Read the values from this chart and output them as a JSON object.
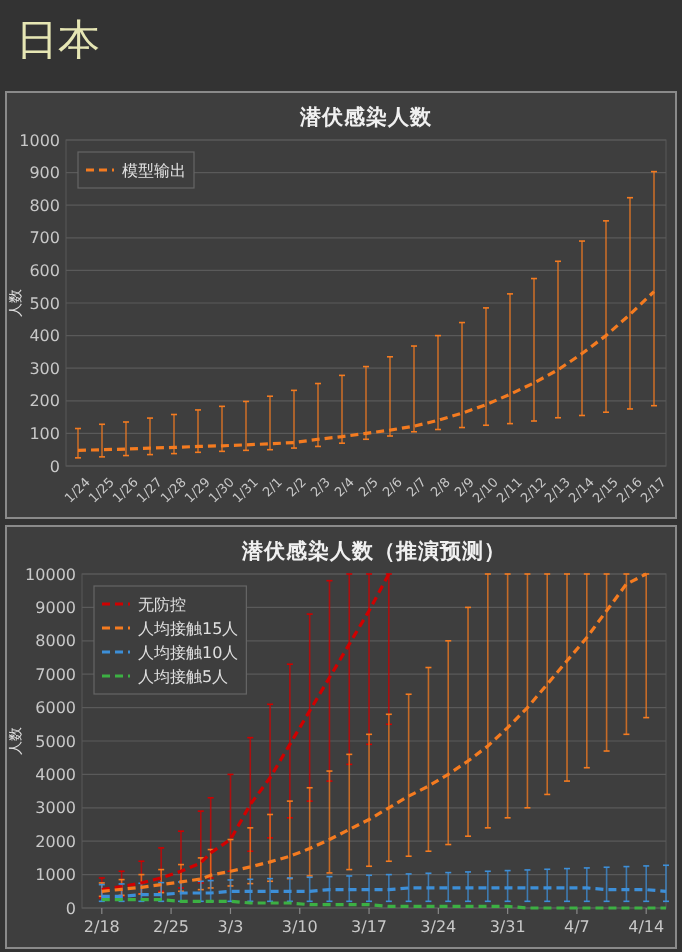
{
  "chart_data": [
    {
      "type": "line",
      "title": "潜伏感染人数",
      "ylabel": "人数",
      "annotations": [
        "日本"
      ],
      "categories": [
        "1/24",
        "1/25",
        "1/26",
        "1/27",
        "1/28",
        "1/29",
        "1/30",
        "1/31",
        "2/1",
        "2/2",
        "2/3",
        "2/4",
        "2/5",
        "2/6",
        "2/7",
        "2/8",
        "2/9",
        "2/10",
        "2/11",
        "2/12",
        "2/13",
        "2/14",
        "2/15",
        "2/16",
        "2/17"
      ],
      "series": [
        {
          "name": "模型输出",
          "color": "#f47b20",
          "values": [
            48,
            50,
            52,
            55,
            57,
            60,
            62,
            65,
            68,
            72,
            82,
            90,
            100,
            110,
            122,
            140,
            162,
            188,
            220,
            255,
            295,
            345,
            400,
            465,
            535
          ],
          "errors": [
            [
              25,
              115
            ],
            [
              28,
              128
            ],
            [
              32,
              135
            ],
            [
              35,
              147
            ],
            [
              38,
              158
            ],
            [
              42,
              172
            ],
            [
              45,
              183
            ],
            [
              48,
              198
            ],
            [
              50,
              214
            ],
            [
              55,
              232
            ],
            [
              60,
              253
            ],
            [
              70,
              278
            ],
            [
              82,
              305
            ],
            [
              92,
              335
            ],
            [
              105,
              368
            ],
            [
              112,
              400
            ],
            [
              118,
              440
            ],
            [
              125,
              485
            ],
            [
              130,
              528
            ],
            [
              138,
              575
            ],
            [
              148,
              628
            ],
            [
              155,
              690
            ],
            [
              165,
              752
            ],
            [
              175,
              823
            ],
            [
              185,
              903
            ]
          ]
        }
      ],
      "ylim": [
        0,
        1000
      ],
      "yticks": [
        0,
        100,
        200,
        300,
        400,
        500,
        600,
        700,
        800,
        900,
        1000
      ],
      "grid": "y",
      "legend": "top left",
      "line_style": "dashed",
      "marker": "none"
    },
    {
      "type": "line",
      "title": "潜伏感染人数（推演预测）",
      "ylabel": "人数",
      "xlim": [
        "--02-16",
        "--04-16"
      ],
      "xticks": [
        {
          "value": "--02-18",
          "label": "2/18"
        },
        {
          "value": "--02-25",
          "label": "2/25"
        },
        {
          "value": "--03-03",
          "label": "3/3"
        },
        {
          "value": "--03-10",
          "label": "3/10"
        },
        {
          "value": "--03-17",
          "label": "3/17"
        },
        {
          "value": "--03-24",
          "label": "3/24"
        },
        {
          "value": "--03-31",
          "label": "3/31"
        },
        {
          "value": "--04-07",
          "label": "4/7"
        },
        {
          "value": "--04-14",
          "label": "4/14"
        }
      ],
      "series": [
        {
          "name": "无防控",
          "color": "#d00000",
          "x": [
            "--02-18",
            "--02-20",
            "--02-22",
            "--02-24",
            "--02-26",
            "--02-28",
            "--03-01",
            "--03-03",
            "--03-05",
            "--03-07",
            "--03-09",
            "--03-11",
            "--03-13",
            "--03-15",
            "--03-17",
            "--03-19"
          ],
          "values": [
            550,
            640,
            750,
            900,
            1100,
            1350,
            1650,
            2050,
            3100,
            3900,
            4900,
            5900,
            6900,
            7900,
            8900,
            10000
          ],
          "errors": [
            [
              300,
              900
            ],
            [
              350,
              1100
            ],
            [
              420,
              1400
            ],
            [
              500,
              1800
            ],
            [
              600,
              2300
            ],
            [
              750,
              2900
            ],
            [
              900,
              3300
            ],
            [
              1100,
              4000
            ],
            [
              1700,
              5100
            ],
            [
              2100,
              6100
            ],
            [
              2700,
              7300
            ],
            [
              3200,
              8800
            ],
            [
              3800,
              9800
            ],
            [
              4300,
              10000
            ],
            [
              4900,
              10000
            ],
            [
              5500,
              10000
            ]
          ]
        },
        {
          "name": "人均接触15人",
          "color": "#f47b20",
          "x": [
            "--02-18",
            "--02-20",
            "--02-22",
            "--02-24",
            "--02-26",
            "--02-28",
            "--03-01",
            "--03-03",
            "--03-05",
            "--03-07",
            "--03-09",
            "--03-11",
            "--03-13",
            "--03-15",
            "--03-17",
            "--03-19",
            "--03-21",
            "--03-23",
            "--03-25",
            "--03-27",
            "--03-29",
            "--03-31",
            "--04-02",
            "--04-04",
            "--04-06",
            "--04-08",
            "--04-10",
            "--04-12",
            "--04-14"
          ],
          "values": [
            500,
            560,
            620,
            700,
            780,
            870,
            980,
            1100,
            1230,
            1380,
            1550,
            1780,
            2050,
            2350,
            2650,
            3000,
            3350,
            3650,
            4000,
            4400,
            4850,
            5400,
            6000,
            6700,
            7400,
            8100,
            8900,
            9700,
            10000
          ],
          "errors": [
            [
              350,
              750
            ],
            [
              380,
              850
            ],
            [
              420,
              1000
            ],
            [
              460,
              1150
            ],
            [
              500,
              1300
            ],
            [
              550,
              1500
            ],
            [
              600,
              1750
            ],
            [
              660,
              2050
            ],
            [
              730,
              2400
            ],
            [
              800,
              2800
            ],
            [
              880,
              3200
            ],
            [
              960,
              3600
            ],
            [
              1050,
              4100
            ],
            [
              1150,
              4600
            ],
            [
              1250,
              5200
            ],
            [
              1400,
              5800
            ],
            [
              1550,
              6400
            ],
            [
              1700,
              7200
            ],
            [
              1900,
              8000
            ],
            [
              2150,
              9000
            ],
            [
              2400,
              10000
            ],
            [
              2700,
              10000
            ],
            [
              3000,
              10000
            ],
            [
              3400,
              10000
            ],
            [
              3800,
              10000
            ],
            [
              4200,
              10000
            ],
            [
              4700,
              10000
            ],
            [
              5200,
              10000
            ],
            [
              5700,
              10000
            ]
          ]
        },
        {
          "name": "人均接触10人",
          "color": "#3d8fd8",
          "x": [
            "--02-18",
            "--02-20",
            "--02-22",
            "--02-24",
            "--02-26",
            "--02-28",
            "--03-01",
            "--03-03",
            "--03-05",
            "--03-07",
            "--03-09",
            "--03-11",
            "--03-13",
            "--03-15",
            "--03-17",
            "--03-19",
            "--03-21",
            "--03-23",
            "--03-25",
            "--03-27",
            "--03-29",
            "--03-31",
            "--04-02",
            "--04-04",
            "--04-06",
            "--04-08",
            "--04-10",
            "--04-12",
            "--04-14",
            "--04-16"
          ],
          "values": [
            350,
            350,
            400,
            400,
            450,
            450,
            450,
            500,
            500,
            500,
            500,
            500,
            550,
            550,
            550,
            550,
            600,
            600,
            600,
            600,
            600,
            600,
            600,
            600,
            600,
            600,
            550,
            550,
            550,
            500
          ],
          "errors": [
            [
              200,
              700
            ],
            [
              200,
              720
            ],
            [
              200,
              740
            ],
            [
              200,
              760
            ],
            [
              200,
              780
            ],
            [
              200,
              800
            ],
            [
              200,
              820
            ],
            [
              200,
              840
            ],
            [
              200,
              860
            ],
            [
              200,
              880
            ],
            [
              200,
              900
            ],
            [
              200,
              920
            ],
            [
              200,
              940
            ],
            [
              200,
              960
            ],
            [
              200,
              980
            ],
            [
              200,
              1000
            ],
            [
              200,
              1020
            ],
            [
              200,
              1040
            ],
            [
              200,
              1060
            ],
            [
              200,
              1080
            ],
            [
              200,
              1100
            ],
            [
              200,
              1120
            ],
            [
              200,
              1140
            ],
            [
              200,
              1160
            ],
            [
              200,
              1180
            ],
            [
              200,
              1200
            ],
            [
              200,
              1220
            ],
            [
              200,
              1240
            ],
            [
              200,
              1260
            ],
            [
              200,
              1280
            ]
          ]
        },
        {
          "name": "人均接触5人",
          "color": "#3cb043",
          "x": [
            "--02-18",
            "--02-20",
            "--02-22",
            "--02-24",
            "--02-26",
            "--02-28",
            "--03-01",
            "--03-03",
            "--03-05",
            "--03-07",
            "--03-09",
            "--03-11",
            "--03-13",
            "--03-15",
            "--03-17",
            "--03-19",
            "--03-21",
            "--03-23",
            "--03-25",
            "--03-27",
            "--03-29",
            "--03-31",
            "--04-02",
            "--04-04",
            "--04-06",
            "--04-08",
            "--04-10",
            "--04-12",
            "--04-14",
            "--04-16"
          ],
          "values": [
            250,
            250,
            250,
            250,
            200,
            200,
            200,
            200,
            150,
            150,
            150,
            100,
            100,
            100,
            100,
            50,
            50,
            50,
            50,
            50,
            50,
            50,
            0,
            0,
            0,
            0,
            0,
            0,
            0,
            0
          ]
        }
      ],
      "ylim": [
        0,
        10000
      ],
      "yticks": [
        0,
        1000,
        2000,
        3000,
        4000,
        5000,
        6000,
        7000,
        8000,
        9000,
        10000
      ],
      "grid": "y",
      "legend": "top left",
      "line_style": "dashed",
      "marker": "none"
    }
  ]
}
